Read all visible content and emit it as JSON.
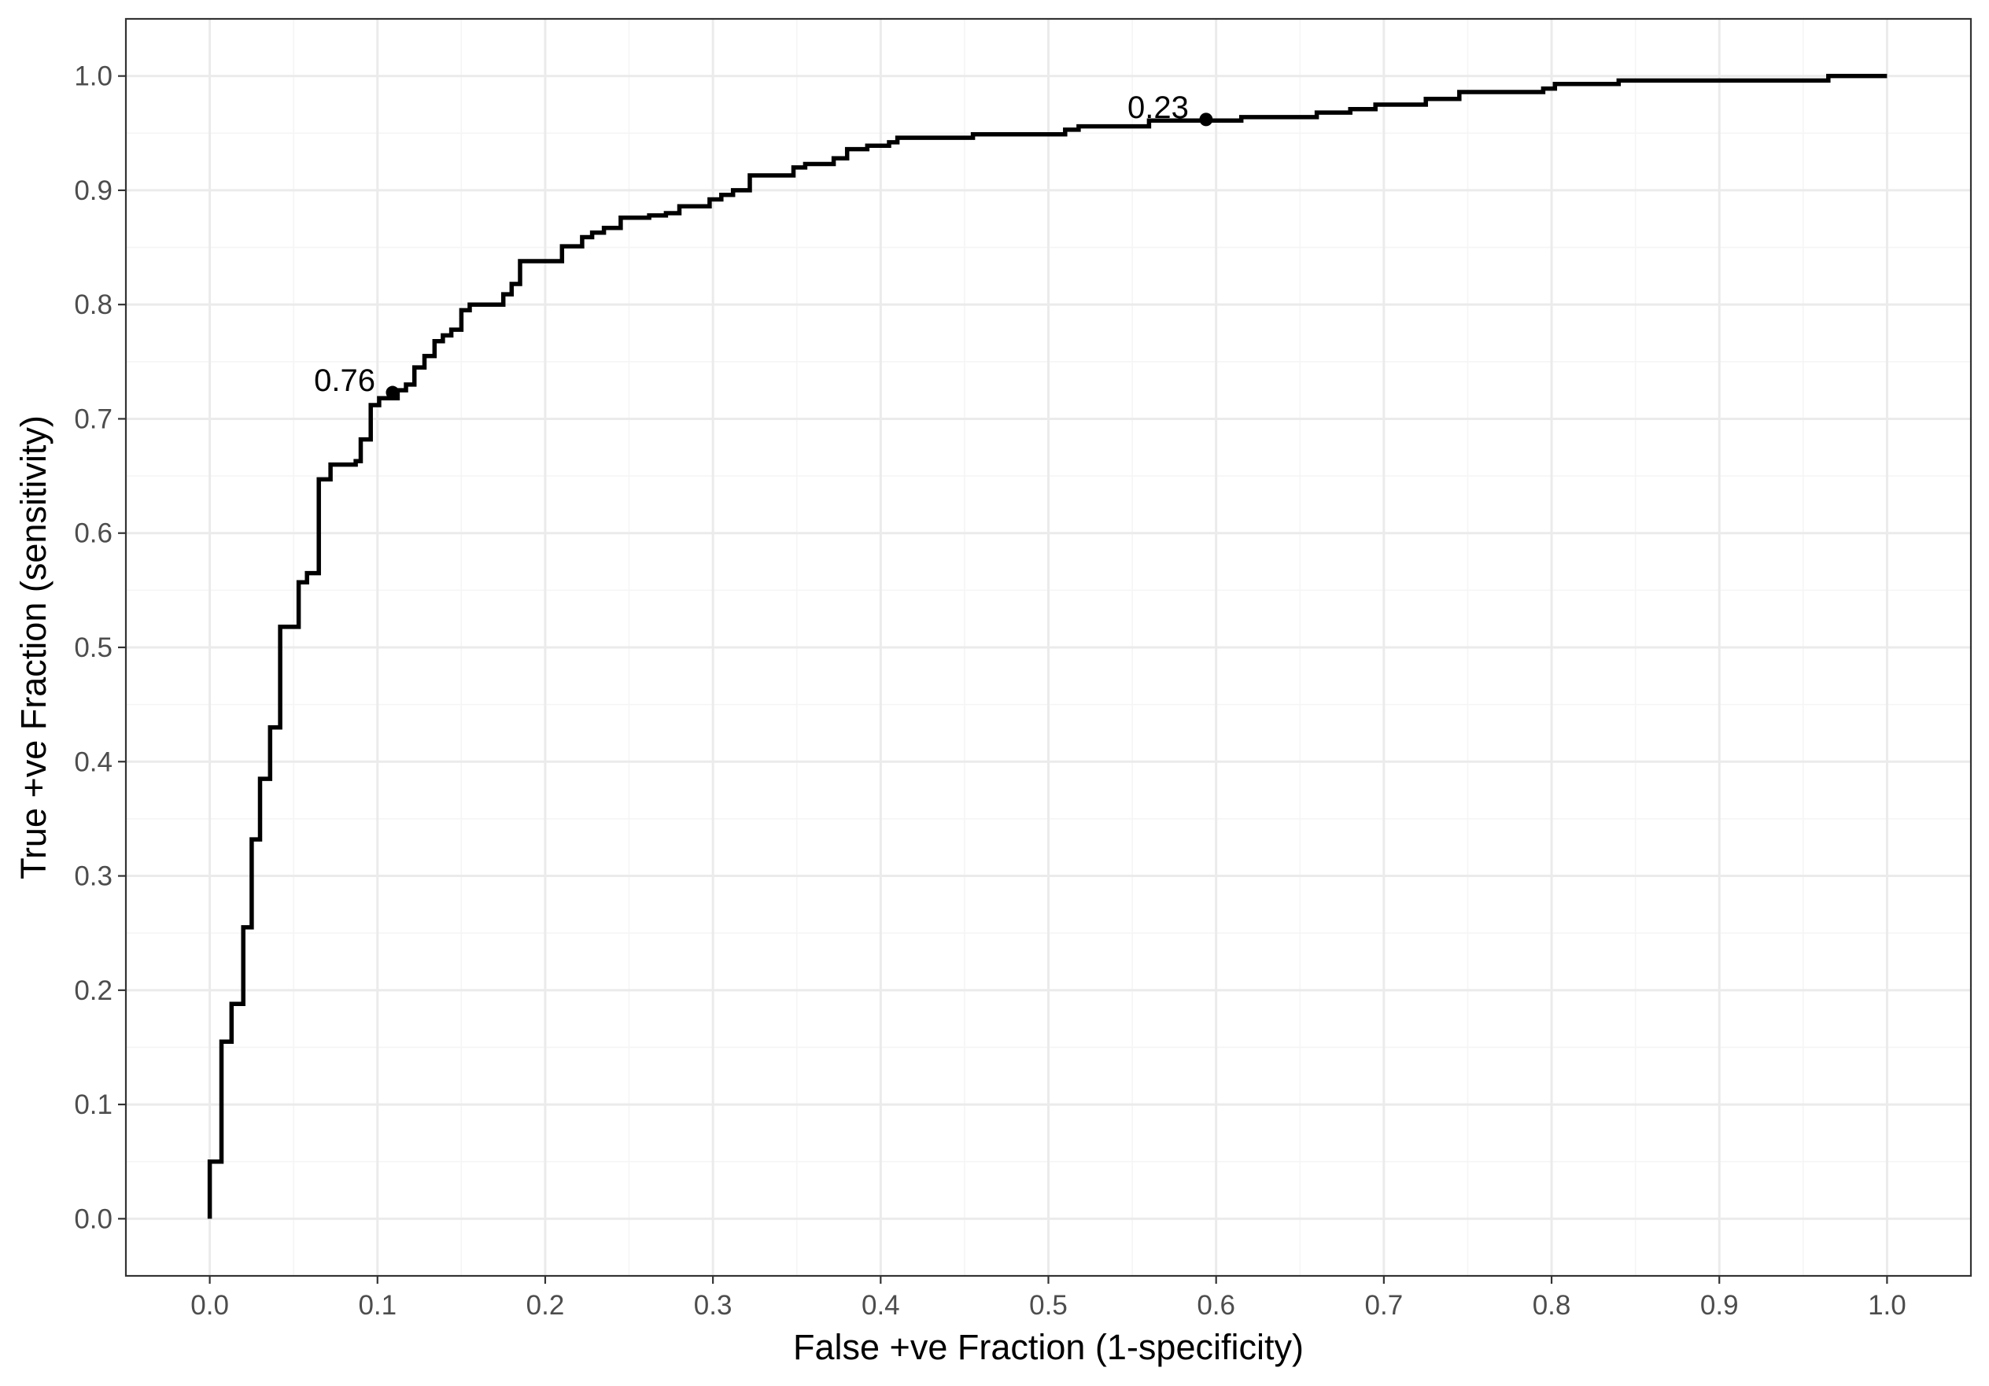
{
  "chart_data": {
    "type": "line",
    "xlabel": "False +ve Fraction (1-specificity)",
    "ylabel": "True +ve Fraction (sensitivity)",
    "xlim": [
      -0.05,
      1.05
    ],
    "ylim": [
      -0.05,
      1.05
    ],
    "x_ticks": [
      "0.0",
      "0.1",
      "0.2",
      "0.3",
      "0.4",
      "0.5",
      "0.6",
      "0.7",
      "0.8",
      "0.9",
      "1.0"
    ],
    "y_ticks": [
      "0.0",
      "0.1",
      "0.2",
      "0.3",
      "0.4",
      "0.5",
      "0.6",
      "0.7",
      "0.8",
      "0.9",
      "1.0"
    ],
    "grid": true,
    "colors": {
      "line": "#000000",
      "grid_major": "#ebebeb",
      "grid_minor": "#f5f5f5",
      "panel_border": "#333333"
    },
    "series": [
      {
        "points": [
          [
            0.0,
            0.0
          ],
          [
            0.0,
            0.05
          ],
          [
            0.007,
            0.05
          ],
          [
            0.007,
            0.155
          ],
          [
            0.013,
            0.155
          ],
          [
            0.013,
            0.188
          ],
          [
            0.02,
            0.188
          ],
          [
            0.02,
            0.255
          ],
          [
            0.025,
            0.255
          ],
          [
            0.025,
            0.332
          ],
          [
            0.03,
            0.332
          ],
          [
            0.03,
            0.385
          ],
          [
            0.036,
            0.385
          ],
          [
            0.036,
            0.43
          ],
          [
            0.042,
            0.43
          ],
          [
            0.042,
            0.518
          ],
          [
            0.053,
            0.518
          ],
          [
            0.053,
            0.557
          ],
          [
            0.058,
            0.557
          ],
          [
            0.058,
            0.565
          ],
          [
            0.065,
            0.565
          ],
          [
            0.065,
            0.647
          ],
          [
            0.072,
            0.647
          ],
          [
            0.072,
            0.66
          ],
          [
            0.087,
            0.66
          ],
          [
            0.087,
            0.663
          ],
          [
            0.09,
            0.663
          ],
          [
            0.09,
            0.682
          ],
          [
            0.096,
            0.682
          ],
          [
            0.096,
            0.712
          ],
          [
            0.101,
            0.712
          ],
          [
            0.101,
            0.718
          ],
          [
            0.112,
            0.718
          ],
          [
            0.112,
            0.725
          ],
          [
            0.117,
            0.725
          ],
          [
            0.117,
            0.73
          ],
          [
            0.122,
            0.73
          ],
          [
            0.122,
            0.745
          ],
          [
            0.128,
            0.745
          ],
          [
            0.128,
            0.755
          ],
          [
            0.134,
            0.755
          ],
          [
            0.134,
            0.768
          ],
          [
            0.139,
            0.768
          ],
          [
            0.139,
            0.773
          ],
          [
            0.144,
            0.773
          ],
          [
            0.144,
            0.778
          ],
          [
            0.15,
            0.778
          ],
          [
            0.15,
            0.795
          ],
          [
            0.155,
            0.795
          ],
          [
            0.155,
            0.8
          ],
          [
            0.175,
            0.8
          ],
          [
            0.175,
            0.809
          ],
          [
            0.18,
            0.809
          ],
          [
            0.18,
            0.818
          ],
          [
            0.185,
            0.818
          ],
          [
            0.185,
            0.838
          ],
          [
            0.21,
            0.838
          ],
          [
            0.21,
            0.851
          ],
          [
            0.222,
            0.851
          ],
          [
            0.222,
            0.859
          ],
          [
            0.228,
            0.859
          ],
          [
            0.228,
            0.863
          ],
          [
            0.235,
            0.863
          ],
          [
            0.235,
            0.867
          ],
          [
            0.245,
            0.867
          ],
          [
            0.245,
            0.876
          ],
          [
            0.262,
            0.876
          ],
          [
            0.262,
            0.878
          ],
          [
            0.272,
            0.878
          ],
          [
            0.272,
            0.88
          ],
          [
            0.28,
            0.88
          ],
          [
            0.28,
            0.886
          ],
          [
            0.298,
            0.886
          ],
          [
            0.298,
            0.892
          ],
          [
            0.305,
            0.892
          ],
          [
            0.305,
            0.896
          ],
          [
            0.312,
            0.896
          ],
          [
            0.312,
            0.9
          ],
          [
            0.322,
            0.9
          ],
          [
            0.322,
            0.913
          ],
          [
            0.348,
            0.913
          ],
          [
            0.348,
            0.92
          ],
          [
            0.355,
            0.92
          ],
          [
            0.355,
            0.923
          ],
          [
            0.372,
            0.923
          ],
          [
            0.372,
            0.928
          ],
          [
            0.38,
            0.928
          ],
          [
            0.38,
            0.936
          ],
          [
            0.392,
            0.936
          ],
          [
            0.392,
            0.939
          ],
          [
            0.405,
            0.939
          ],
          [
            0.405,
            0.942
          ],
          [
            0.41,
            0.942
          ],
          [
            0.41,
            0.946
          ],
          [
            0.455,
            0.946
          ],
          [
            0.455,
            0.949
          ],
          [
            0.51,
            0.949
          ],
          [
            0.51,
            0.953
          ],
          [
            0.518,
            0.953
          ],
          [
            0.518,
            0.956
          ],
          [
            0.56,
            0.956
          ],
          [
            0.56,
            0.961
          ],
          [
            0.615,
            0.961
          ],
          [
            0.615,
            0.964
          ],
          [
            0.66,
            0.964
          ],
          [
            0.66,
            0.968
          ],
          [
            0.68,
            0.968
          ],
          [
            0.68,
            0.971
          ],
          [
            0.695,
            0.971
          ],
          [
            0.695,
            0.975
          ],
          [
            0.725,
            0.975
          ],
          [
            0.725,
            0.98
          ],
          [
            0.745,
            0.98
          ],
          [
            0.745,
            0.986
          ],
          [
            0.795,
            0.986
          ],
          [
            0.795,
            0.989
          ],
          [
            0.802,
            0.989
          ],
          [
            0.802,
            0.993
          ],
          [
            0.84,
            0.993
          ],
          [
            0.84,
            0.996
          ],
          [
            0.965,
            0.996
          ],
          [
            0.965,
            1.0
          ],
          [
            1.0,
            1.0
          ]
        ]
      }
    ],
    "annotations": [
      {
        "text": "0.76",
        "x": 0.109,
        "y": 0.723
      },
      {
        "text": "0.23",
        "x": 0.594,
        "y": 0.962
      }
    ]
  }
}
